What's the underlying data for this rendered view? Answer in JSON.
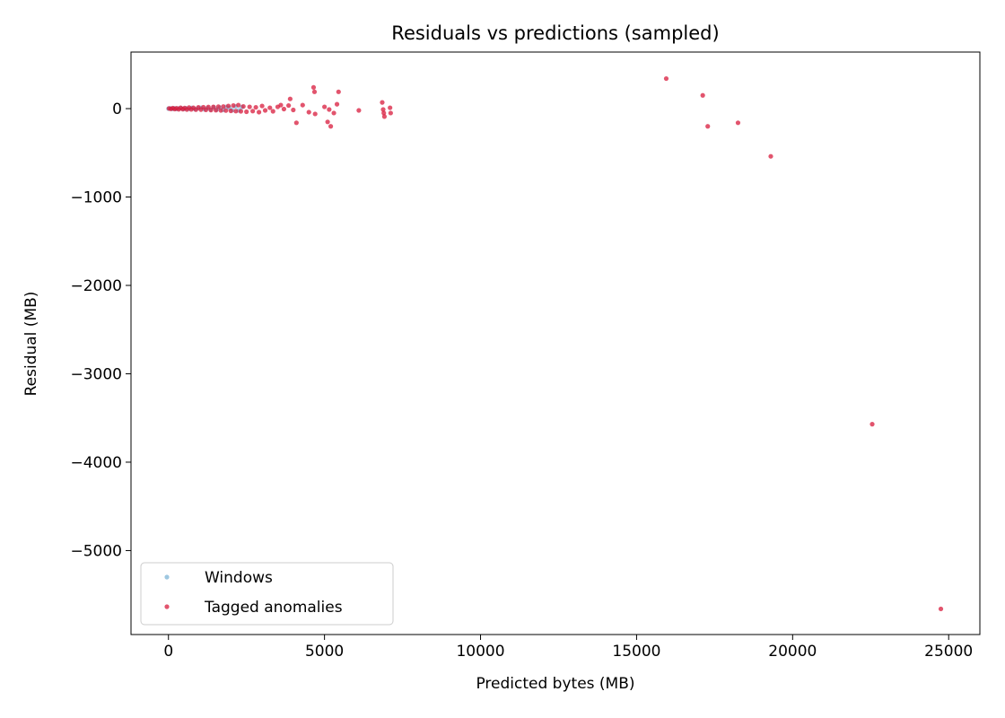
{
  "chart_data": {
    "type": "scatter",
    "title": "Residuals vs predictions (sampled)",
    "xlabel": "Predicted bytes (MB)",
    "ylabel": "Residual (MB)",
    "xlim": [
      -1200,
      26000
    ],
    "ylim": [
      -5950,
      640
    ],
    "xticks": [
      0,
      5000,
      10000,
      15000,
      20000,
      25000
    ],
    "xtick_labels": [
      "0",
      "5000",
      "10000",
      "15000",
      "20000",
      "25000"
    ],
    "yticks": [
      0,
      -1000,
      -2000,
      -3000,
      -4000,
      -5000
    ],
    "ytick_labels": [
      "0",
      "−1000",
      "−2000",
      "−3000",
      "−4000",
      "−5000"
    ],
    "grid": false,
    "legend_position": "lower-left",
    "series": [
      {
        "name": "Windows",
        "color": "#7eb4d6",
        "points": [
          [
            0,
            0
          ],
          [
            60,
            3
          ],
          [
            120,
            -2
          ],
          [
            180,
            5
          ],
          [
            250,
            -4
          ],
          [
            320,
            2
          ],
          [
            400,
            6
          ],
          [
            480,
            -5
          ],
          [
            560,
            4
          ],
          [
            650,
            -3
          ],
          [
            750,
            8
          ],
          [
            850,
            -6
          ],
          [
            950,
            5
          ],
          [
            1050,
            10
          ],
          [
            1150,
            -8
          ],
          [
            1250,
            7
          ],
          [
            1350,
            -12
          ],
          [
            1450,
            15
          ],
          [
            1550,
            -10
          ],
          [
            1650,
            12
          ],
          [
            1750,
            -15
          ],
          [
            1850,
            20
          ],
          [
            1950,
            8
          ],
          [
            2050,
            -18
          ],
          [
            2150,
            25
          ],
          [
            2250,
            -20
          ],
          [
            2350,
            18
          ]
        ]
      },
      {
        "name": "Tagged anomalies",
        "color": "#d81b3c",
        "points": [
          [
            20,
            2
          ],
          [
            80,
            -3
          ],
          [
            140,
            6
          ],
          [
            200,
            -5
          ],
          [
            260,
            4
          ],
          [
            330,
            -8
          ],
          [
            390,
            9
          ],
          [
            460,
            -6
          ],
          [
            520,
            7
          ],
          [
            590,
            -10
          ],
          [
            660,
            12
          ],
          [
            730,
            -9
          ],
          [
            800,
            10
          ],
          [
            880,
            -12
          ],
          [
            960,
            14
          ],
          [
            1040,
            -11
          ],
          [
            1120,
            16
          ],
          [
            1200,
            -14
          ],
          [
            1280,
            18
          ],
          [
            1360,
            -16
          ],
          [
            1440,
            20
          ],
          [
            1520,
            -18
          ],
          [
            1600,
            22
          ],
          [
            1680,
            -20
          ],
          [
            1760,
            24
          ],
          [
            1840,
            -22
          ],
          [
            1920,
            30
          ],
          [
            2000,
            -25
          ],
          [
            2080,
            35
          ],
          [
            2160,
            -28
          ],
          [
            2240,
            40
          ],
          [
            2320,
            -30
          ],
          [
            2400,
            25
          ],
          [
            2500,
            -35
          ],
          [
            2600,
            20
          ],
          [
            2700,
            -28
          ],
          [
            2800,
            15
          ],
          [
            2900,
            -40
          ],
          [
            3000,
            30
          ],
          [
            3100,
            -20
          ],
          [
            3250,
            10
          ],
          [
            3350,
            -30
          ],
          [
            3500,
            20
          ],
          [
            3600,
            40
          ],
          [
            3700,
            -5
          ],
          [
            3850,
            35
          ],
          [
            3900,
            110
          ],
          [
            4000,
            -15
          ],
          [
            4100,
            -160
          ],
          [
            4300,
            40
          ],
          [
            4500,
            -40
          ],
          [
            4650,
            240
          ],
          [
            4680,
            190
          ],
          [
            4700,
            -60
          ],
          [
            5000,
            20
          ],
          [
            5100,
            -150
          ],
          [
            5150,
            -10
          ],
          [
            5200,
            -200
          ],
          [
            5300,
            -50
          ],
          [
            5400,
            50
          ],
          [
            5450,
            190
          ],
          [
            6100,
            -20
          ],
          [
            6850,
            70
          ],
          [
            6880,
            -10
          ],
          [
            6900,
            -50
          ],
          [
            6920,
            -90
          ],
          [
            7100,
            10
          ],
          [
            7120,
            -50
          ],
          [
            15950,
            340
          ],
          [
            17120,
            150
          ],
          [
            17280,
            -200
          ],
          [
            18250,
            -160
          ],
          [
            19300,
            -540
          ],
          [
            22550,
            -3570
          ],
          [
            24750,
            -5660
          ]
        ]
      }
    ]
  }
}
